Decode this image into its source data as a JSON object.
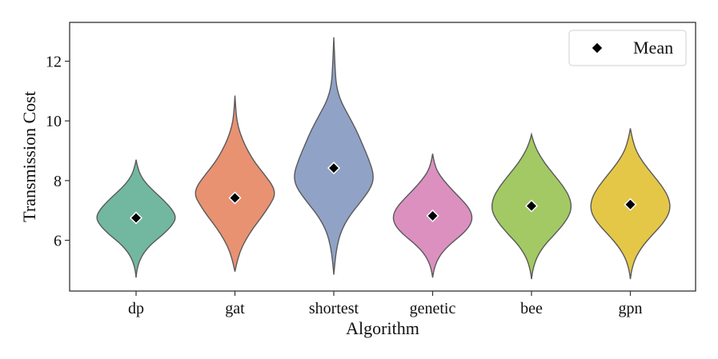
{
  "chart_data": {
    "type": "violin",
    "xlabel": "Algorithm",
    "ylabel": "Transmission Cost",
    "categories": [
      "dp",
      "gat",
      "shortest",
      "genetic",
      "bee",
      "gpn"
    ],
    "ylim": [
      4.3,
      13.3
    ],
    "yticks": [
      6,
      8,
      10,
      12
    ],
    "grid": false,
    "legend": {
      "position": "top-right",
      "entries": [
        {
          "label": "Mean",
          "marker": "diamond",
          "color": "#000000"
        }
      ]
    },
    "series": [
      {
        "category": "dp",
        "color": "#72b8a1",
        "min": 4.75,
        "max": 8.7,
        "mean": 6.75,
        "profile": [
          [
            4.75,
            0.0
          ],
          [
            5.0,
            0.02
          ],
          [
            5.3,
            0.08
          ],
          [
            5.6,
            0.2
          ],
          [
            5.9,
            0.4
          ],
          [
            6.2,
            0.68
          ],
          [
            6.5,
            0.9
          ],
          [
            6.75,
            1.0
          ],
          [
            7.0,
            0.92
          ],
          [
            7.3,
            0.72
          ],
          [
            7.6,
            0.48
          ],
          [
            7.9,
            0.25
          ],
          [
            8.2,
            0.1
          ],
          [
            8.5,
            0.03
          ],
          [
            8.7,
            0.0
          ]
        ]
      },
      {
        "category": "gat",
        "color": "#e89272",
        "min": 4.95,
        "max": 10.85,
        "mean": 7.42,
        "profile": [
          [
            4.95,
            0.0
          ],
          [
            5.2,
            0.04
          ],
          [
            5.6,
            0.12
          ],
          [
            6.0,
            0.26
          ],
          [
            6.4,
            0.45
          ],
          [
            6.8,
            0.68
          ],
          [
            7.2,
            0.88
          ],
          [
            7.5,
            1.0
          ],
          [
            7.8,
            0.96
          ],
          [
            8.2,
            0.74
          ],
          [
            8.6,
            0.5
          ],
          [
            9.0,
            0.32
          ],
          [
            9.4,
            0.18
          ],
          [
            9.8,
            0.08
          ],
          [
            10.2,
            0.03
          ],
          [
            10.85,
            0.0
          ]
        ]
      },
      {
        "category": "shortest",
        "color": "#90a2c6",
        "min": 4.85,
        "max": 12.8,
        "mean": 8.42,
        "profile": [
          [
            4.85,
            0.0
          ],
          [
            5.3,
            0.03
          ],
          [
            5.8,
            0.08
          ],
          [
            6.3,
            0.18
          ],
          [
            6.8,
            0.38
          ],
          [
            7.3,
            0.68
          ],
          [
            7.8,
            0.95
          ],
          [
            8.2,
            1.0
          ],
          [
            8.7,
            0.88
          ],
          [
            9.2,
            0.72
          ],
          [
            9.7,
            0.56
          ],
          [
            10.2,
            0.36
          ],
          [
            10.7,
            0.16
          ],
          [
            11.2,
            0.06
          ],
          [
            11.8,
            0.03
          ],
          [
            12.8,
            0.0
          ]
        ]
      },
      {
        "category": "genetic",
        "color": "#dc90c0",
        "min": 4.75,
        "max": 8.9,
        "mean": 6.82,
        "profile": [
          [
            4.75,
            0.0
          ],
          [
            5.0,
            0.03
          ],
          [
            5.3,
            0.1
          ],
          [
            5.6,
            0.24
          ],
          [
            5.9,
            0.46
          ],
          [
            6.2,
            0.74
          ],
          [
            6.5,
            0.94
          ],
          [
            6.8,
            1.0
          ],
          [
            7.1,
            0.9
          ],
          [
            7.4,
            0.7
          ],
          [
            7.7,
            0.48
          ],
          [
            8.0,
            0.28
          ],
          [
            8.3,
            0.12
          ],
          [
            8.6,
            0.04
          ],
          [
            8.9,
            0.0
          ]
        ]
      },
      {
        "category": "bee",
        "color": "#a3c964",
        "min": 4.7,
        "max": 9.55,
        "mean": 7.15,
        "profile": [
          [
            4.7,
            0.0
          ],
          [
            5.0,
            0.03
          ],
          [
            5.4,
            0.12
          ],
          [
            5.8,
            0.3
          ],
          [
            6.2,
            0.58
          ],
          [
            6.6,
            0.84
          ],
          [
            7.0,
            1.0
          ],
          [
            7.4,
            0.97
          ],
          [
            7.8,
            0.8
          ],
          [
            8.2,
            0.56
          ],
          [
            8.6,
            0.32
          ],
          [
            9.0,
            0.14
          ],
          [
            9.3,
            0.05
          ],
          [
            9.55,
            0.0
          ]
        ]
      },
      {
        "category": "gpn",
        "color": "#e5c748",
        "min": 4.7,
        "max": 9.75,
        "mean": 7.2,
        "profile": [
          [
            4.7,
            0.0
          ],
          [
            5.0,
            0.03
          ],
          [
            5.4,
            0.12
          ],
          [
            5.8,
            0.3
          ],
          [
            6.2,
            0.56
          ],
          [
            6.6,
            0.84
          ],
          [
            7.0,
            1.0
          ],
          [
            7.4,
            0.97
          ],
          [
            7.8,
            0.8
          ],
          [
            8.2,
            0.56
          ],
          [
            8.6,
            0.32
          ],
          [
            9.0,
            0.14
          ],
          [
            9.4,
            0.05
          ],
          [
            9.75,
            0.0
          ]
        ]
      }
    ]
  }
}
